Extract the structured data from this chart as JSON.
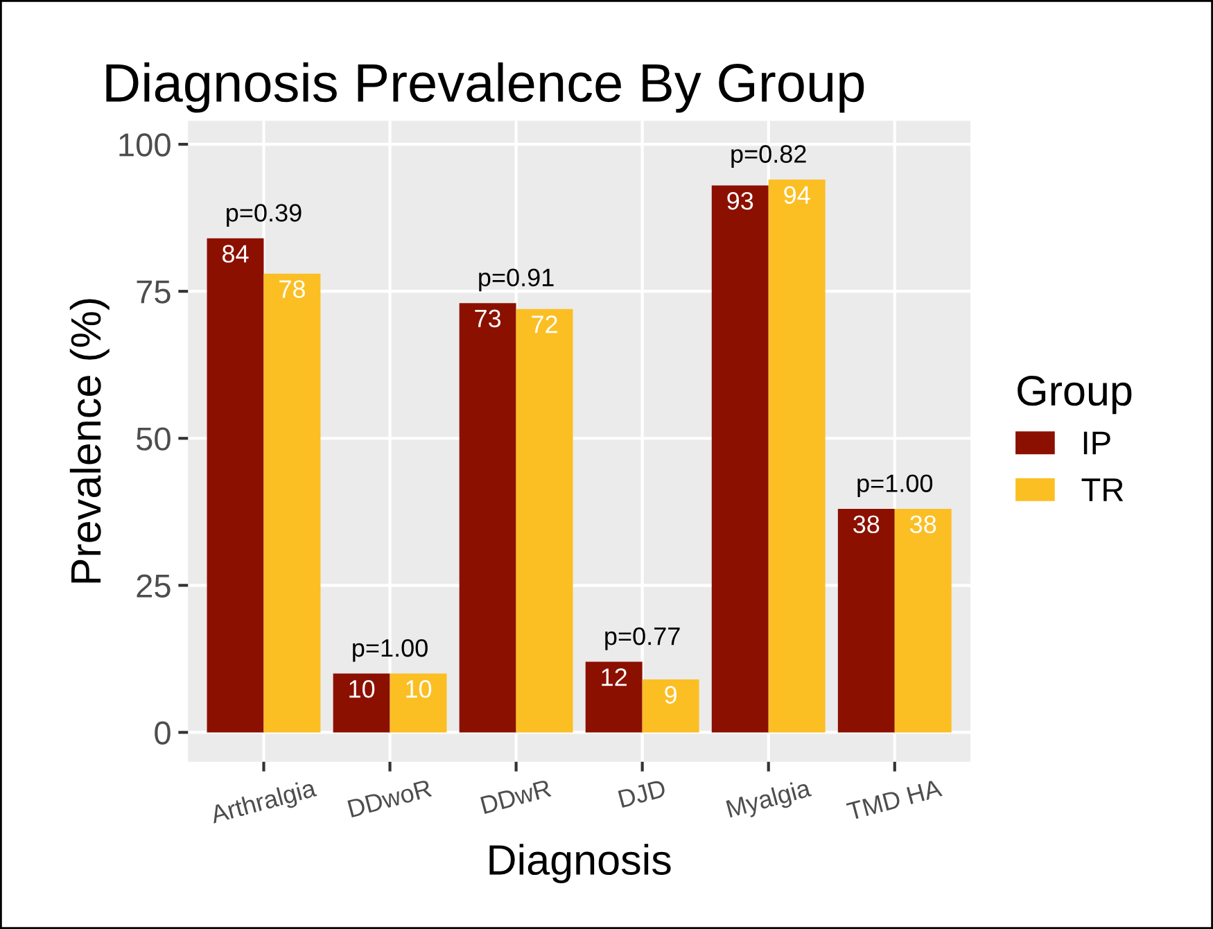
{
  "chart_data": {
    "type": "bar",
    "title": "Diagnosis Prevalence By Group",
    "xlabel": "Diagnosis",
    "ylabel": "Prevalence (%)",
    "legend_title": "Group",
    "categories": [
      "Arthralgia",
      "DDwoR",
      "DDwR",
      "DJD",
      "Myalgia",
      "TMD HA"
    ],
    "series": [
      {
        "name": "IP",
        "color": "#8b1000",
        "values": [
          84,
          10,
          73,
          12,
          93,
          38
        ]
      },
      {
        "name": "TR",
        "color": "#fbbf24",
        "values": [
          78,
          10,
          72,
          9,
          94,
          38
        ]
      }
    ],
    "ylim": [
      -5,
      104
    ],
    "yticks": [
      0,
      25,
      50,
      75,
      100
    ],
    "grid": true,
    "legend": "right",
    "data_labels": true,
    "annotations": [
      "p=0.39",
      "p=1.00",
      "p=0.91",
      "p=0.77",
      "p=0.82",
      "p=1.00"
    ]
  }
}
